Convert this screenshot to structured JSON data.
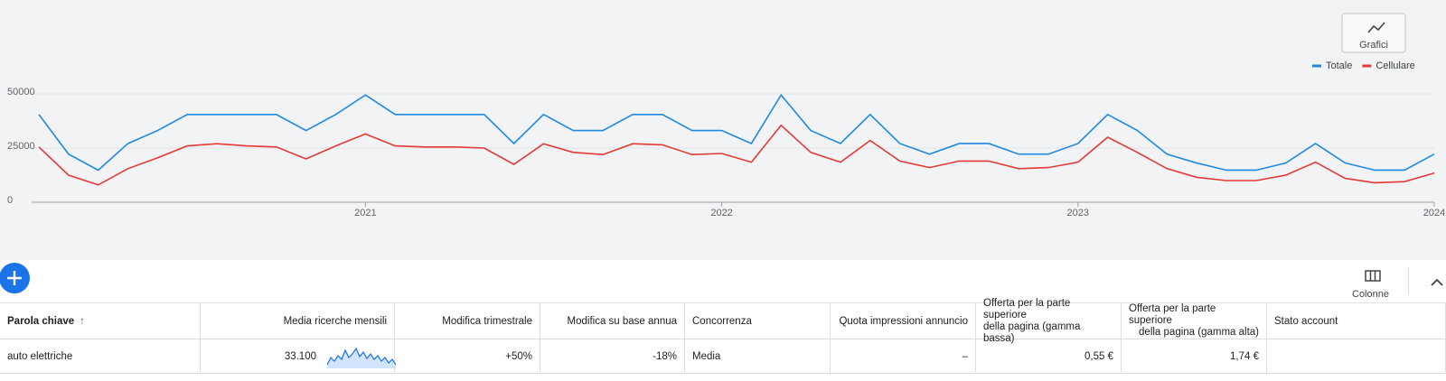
{
  "chart_data": {
    "type": "line",
    "categories": [
      null,
      null,
      null,
      null,
      null,
      null,
      null,
      null,
      null,
      null,
      null,
      "2021",
      null,
      null,
      null,
      null,
      null,
      null,
      null,
      null,
      null,
      null,
      null,
      "2022",
      null,
      null,
      null,
      null,
      null,
      null,
      null,
      null,
      null,
      null,
      null,
      "2023",
      null,
      null,
      null,
      null,
      null,
      null,
      null,
      null,
      null,
      null,
      null,
      "2024"
    ],
    "series": [
      {
        "name": "Totale",
        "color": "#1e88e5",
        "values": [
          40500,
          22200,
          14800,
          27100,
          33100,
          40500,
          40500,
          40500,
          40500,
          33100,
          40500,
          49500,
          40500,
          40500,
          40500,
          40500,
          27100,
          40500,
          33100,
          33100,
          40500,
          40500,
          33100,
          33100,
          27100,
          49500,
          33100,
          27100,
          40500,
          27100,
          22200,
          27100,
          27100,
          22200,
          22200,
          27100,
          40500,
          33100,
          22200,
          18100,
          14800,
          14800,
          18100,
          27100,
          18100,
          14800,
          14800,
          22200
        ]
      },
      {
        "name": "Cellulare",
        "color": "#e53935",
        "values": [
          25500,
          12500,
          8000,
          15500,
          20500,
          26000,
          27000,
          26000,
          25500,
          20000,
          26000,
          31500,
          26000,
          25500,
          25500,
          25000,
          17500,
          27000,
          23000,
          22000,
          27000,
          26500,
          22000,
          22500,
          18500,
          35500,
          23000,
          18500,
          28500,
          19000,
          16000,
          19000,
          19000,
          15500,
          16000,
          18500,
          30000,
          23000,
          15500,
          11500,
          10000,
          10000,
          12500,
          18500,
          11000,
          9000,
          9500,
          13500
        ]
      }
    ],
    "ylim": [
      0,
      55000
    ],
    "yticks": [
      0,
      25000,
      50000
    ],
    "grid": true,
    "legend": "top-right"
  },
  "chart_button": "Grafici",
  "toolbar": {
    "columns_button": "Colonne"
  },
  "table": {
    "headers": [
      "Parola chiave",
      "Media ricerche mensili",
      "Modifica trimestrale",
      "Modifica su base annua",
      "Concorrenza",
      "Quota impressioni annuncio",
      [
        "Offerta per la parte superiore",
        "della pagina (gamma bassa)"
      ],
      [
        "Offerta per la parte superiore",
        "della pagina (gamma alta)"
      ],
      "Stato account"
    ],
    "rows": [
      [
        "auto elettriche",
        "33.100",
        "+50%",
        "-18%",
        "Media",
        "–",
        "0,55 €",
        "1,74 €"
      ]
    ]
  }
}
